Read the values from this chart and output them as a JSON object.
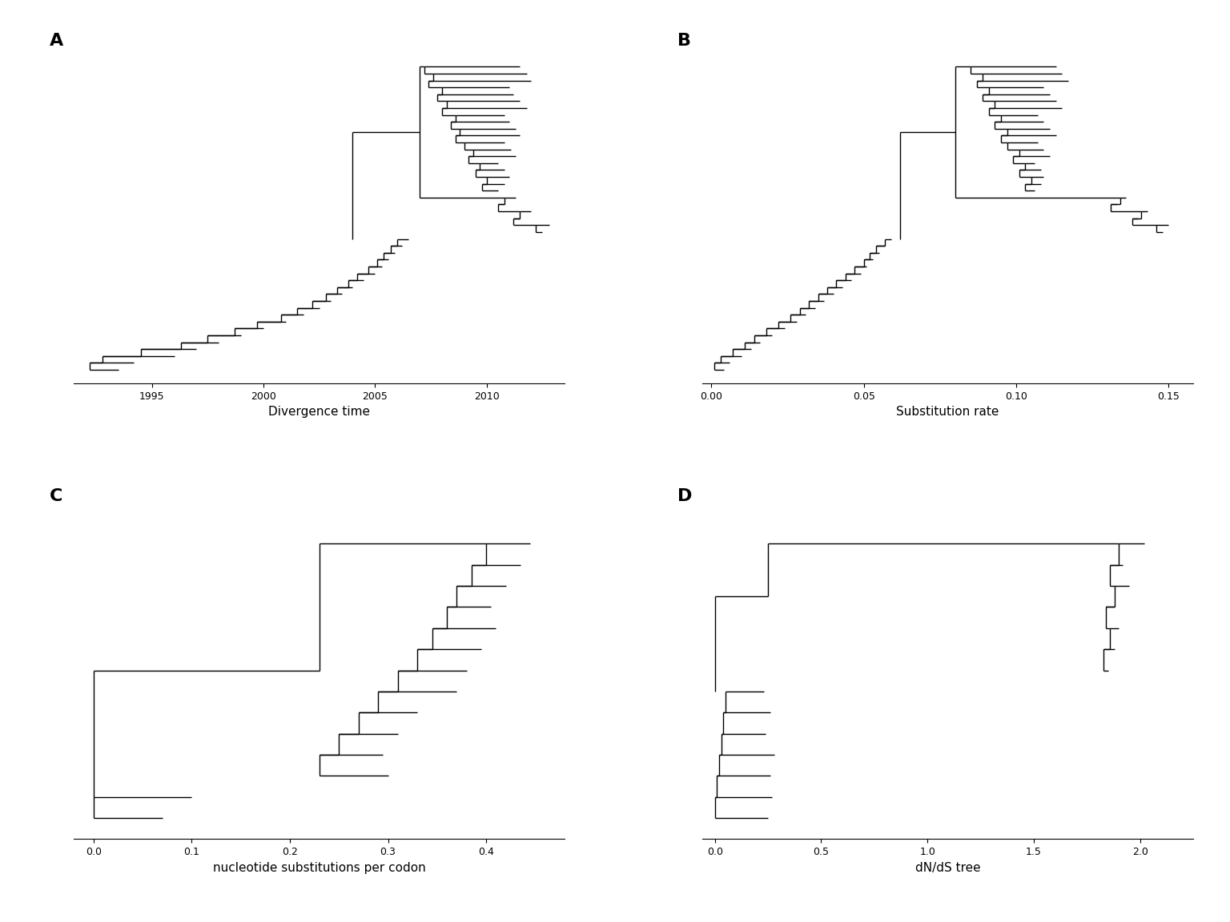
{
  "panel_labels_fontsize": 16,
  "axis_label_fontsize": 11,
  "tick_fontsize": 9,
  "line_color": "black",
  "line_width": 1.0,
  "panel_A": {
    "xlabel": "Divergence time",
    "xlim": [
      1991.5,
      2013.5
    ],
    "xticks": [
      1995,
      2000,
      2005,
      2010
    ],
    "title": "A"
  },
  "panel_B": {
    "xlabel": "Substitution rate",
    "xlim": [
      -0.003,
      0.158
    ],
    "xticks": [
      0.0,
      0.05,
      0.1,
      0.15
    ],
    "title": "B"
  },
  "panel_C": {
    "xlabel": "nucleotide substitutions per codon",
    "xlim": [
      -0.02,
      0.48
    ],
    "xticks": [
      0.0,
      0.1,
      0.2,
      0.3,
      0.4
    ],
    "title": "C"
  },
  "panel_D": {
    "xlabel": "dN/dS tree",
    "xlim": [
      -0.06,
      2.25
    ],
    "xticks": [
      0.0,
      0.5,
      1.0,
      1.5,
      2.0
    ],
    "title": "D"
  }
}
